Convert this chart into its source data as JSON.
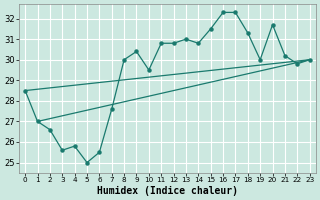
{
  "xlabel": "Humidex (Indice chaleur)",
  "bg_color": "#cce8e0",
  "grid_color": "#ffffff",
  "line_color": "#1a7a6e",
  "xlim": [
    -0.5,
    23.5
  ],
  "ylim": [
    24.5,
    32.7
  ],
  "yticks": [
    25,
    26,
    27,
    28,
    29,
    30,
    31,
    32
  ],
  "xticks": [
    0,
    1,
    2,
    3,
    4,
    5,
    6,
    7,
    8,
    9,
    10,
    11,
    12,
    13,
    14,
    15,
    16,
    17,
    18,
    19,
    20,
    21,
    22,
    23
  ],
  "series1_x": [
    0,
    1,
    2,
    3,
    4,
    5,
    6,
    7,
    8,
    9,
    10,
    11,
    12,
    13,
    14,
    15,
    16,
    17,
    18,
    19,
    20,
    21,
    22,
    23
  ],
  "series1_y": [
    28.5,
    27.0,
    26.6,
    25.6,
    25.8,
    25.0,
    25.5,
    27.6,
    30.0,
    30.4,
    29.5,
    30.8,
    30.8,
    31.0,
    30.8,
    31.5,
    32.3,
    32.3,
    31.3,
    30.0,
    31.7,
    30.2,
    29.8,
    30.0
  ],
  "series2_x": [
    0,
    23
  ],
  "series2_y": [
    28.5,
    30.0
  ],
  "series3_x": [
    1,
    23
  ],
  "series3_y": [
    27.0,
    30.0
  ],
  "xlabel_fontsize": 7,
  "tick_fontsize": 6
}
